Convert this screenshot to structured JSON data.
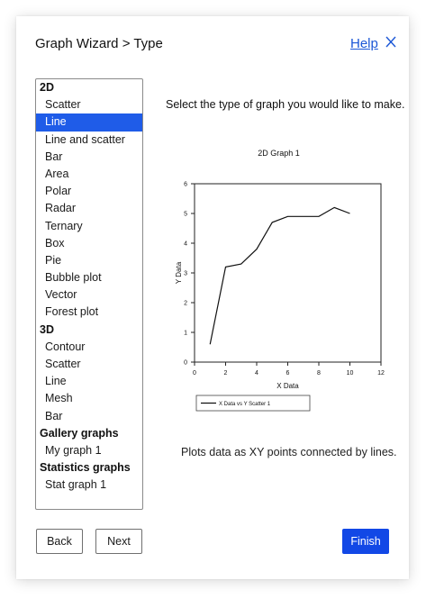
{
  "header": {
    "title": "Graph Wizard > Type",
    "help_label": "Help"
  },
  "graph_types": [
    {
      "label": "2D",
      "kind": "header"
    },
    {
      "label": "Scatter",
      "kind": "item"
    },
    {
      "label": "Line",
      "kind": "item",
      "selected": true
    },
    {
      "label": "Line and scatter",
      "kind": "item"
    },
    {
      "label": "Bar",
      "kind": "item"
    },
    {
      "label": "Area",
      "kind": "item"
    },
    {
      "label": "Polar",
      "kind": "item"
    },
    {
      "label": "Radar",
      "kind": "item"
    },
    {
      "label": "Ternary",
      "kind": "item"
    },
    {
      "label": "Box",
      "kind": "item"
    },
    {
      "label": "Pie",
      "kind": "item"
    },
    {
      "label": "Bubble plot",
      "kind": "item"
    },
    {
      "label": "Vector",
      "kind": "item"
    },
    {
      "label": "Forest plot",
      "kind": "item"
    },
    {
      "label": "3D",
      "kind": "header"
    },
    {
      "label": "Contour",
      "kind": "item"
    },
    {
      "label": "Scatter",
      "kind": "item"
    },
    {
      "label": "Line",
      "kind": "item"
    },
    {
      "label": "Mesh",
      "kind": "item"
    },
    {
      "label": "Bar",
      "kind": "item"
    },
    {
      "label": "Gallery graphs",
      "kind": "header"
    },
    {
      "label": "My graph 1",
      "kind": "item"
    },
    {
      "label": "Statistics graphs",
      "kind": "header"
    },
    {
      "label": "Stat graph 1",
      "kind": "item"
    }
  ],
  "main": {
    "prompt": "Select the type of graph you would like to make.",
    "description": "Plots data as XY points connected by lines."
  },
  "buttons": {
    "back": "Back",
    "next": "Next",
    "finish": "Finish"
  },
  "colors": {
    "accent": "#1248e6",
    "selection": "#1f5ce8",
    "link": "#1a56d6"
  },
  "icons": {
    "close": "close-icon"
  },
  "chart_data": {
    "type": "line",
    "title": "2D Graph 1",
    "xlabel": "X Data",
    "ylabel": "Y Data",
    "xlim": [
      0,
      12
    ],
    "ylim": [
      0,
      6
    ],
    "xticks": [
      0,
      2,
      4,
      6,
      8,
      10,
      12
    ],
    "yticks": [
      0,
      1,
      2,
      3,
      4,
      5,
      6
    ],
    "grid": false,
    "legend_position": "bottom-left",
    "series": [
      {
        "name": "X Data vs Y Scatter 1",
        "x": [
          1,
          2,
          3,
          4,
          5,
          6,
          7,
          8,
          9,
          10
        ],
        "y": [
          0.6,
          3.2,
          3.3,
          3.8,
          4.7,
          4.9,
          4.9,
          4.9,
          5.2,
          5.0
        ]
      }
    ]
  }
}
